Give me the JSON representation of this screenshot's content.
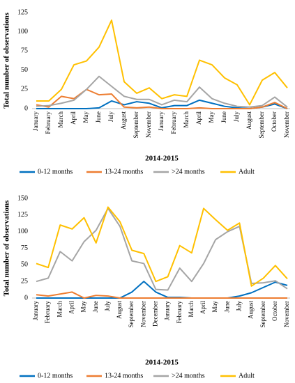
{
  "chart_data": [
    {
      "type": "line",
      "x_label": "2014-2015",
      "y_label": "Total number of observations",
      "categories": [
        "January",
        "February",
        "March",
        "April",
        "May",
        "June",
        "July",
        "August",
        "September",
        "November",
        "January",
        "February",
        "March",
        "April",
        "May",
        "June",
        "July",
        "August",
        "September",
        "October",
        "November"
      ],
      "ylim": [
        0,
        125
      ],
      "yticks": [
        0,
        25,
        50,
        75,
        100,
        125
      ],
      "series": [
        {
          "name": "0-12 months",
          "color": "#0070c0",
          "values": [
            0,
            0,
            0,
            0,
            0,
            1,
            10,
            5,
            9,
            7,
            1,
            4,
            4,
            11,
            7,
            3,
            1,
            0,
            2,
            6,
            0
          ]
        },
        {
          "name": "13-24 months",
          "color": "#ed7d31",
          "values": [
            5,
            2,
            16,
            13,
            25,
            18,
            19,
            2,
            1,
            2,
            0,
            0,
            0,
            1,
            0,
            0,
            0,
            0,
            2,
            8,
            0
          ]
        },
        {
          "name": ">24 months",
          "color": "#a5a5a5",
          "values": [
            3,
            4,
            7,
            11,
            25,
            42,
            29,
            16,
            12,
            12,
            5,
            11,
            9,
            28,
            13,
            7,
            3,
            2,
            4,
            15,
            2
          ]
        },
        {
          "name": "Adult",
          "color": "#ffc000",
          "values": [
            10,
            10,
            25,
            57,
            62,
            80,
            115,
            35,
            20,
            27,
            13,
            18,
            16,
            63,
            57,
            40,
            31,
            5,
            37,
            47,
            27
          ]
        }
      ]
    },
    {
      "type": "line",
      "x_label": "2014-2015",
      "y_label": "Total number of observations",
      "categories": [
        "January",
        "February",
        "March",
        "April",
        "May",
        "June",
        "July",
        "August",
        "September",
        "November",
        "December",
        "January",
        "February",
        "March",
        "April",
        "May",
        "June",
        "July",
        "August",
        "September",
        "October",
        "November"
      ],
      "ylim": [
        0,
        150
      ],
      "yticks": [
        0,
        25,
        50,
        75,
        100,
        125,
        150
      ],
      "series": [
        {
          "name": "0-12 months",
          "color": "#0070c0",
          "values": [
            0,
            0,
            0,
            0,
            0,
            0,
            0,
            0,
            9,
            25,
            9,
            1,
            1,
            0,
            0,
            0,
            0,
            3,
            8,
            16,
            24,
            19
          ]
        },
        {
          "name": "13-24 months",
          "color": "#ed7d31",
          "values": [
            5,
            3,
            6,
            9,
            0,
            4,
            3,
            0,
            0,
            0,
            0,
            0,
            0,
            0,
            0,
            0,
            0,
            0,
            0,
            0,
            0,
            0
          ]
        },
        {
          "name": ">24 months",
          "color": "#a5a5a5",
          "values": [
            25,
            30,
            70,
            56,
            85,
            102,
            135,
            108,
            56,
            52,
            13,
            12,
            45,
            25,
            52,
            88,
            100,
            108,
            22,
            23,
            26,
            14
          ]
        },
        {
          "name": "Adult",
          "color": "#ffc000",
          "values": [
            52,
            46,
            110,
            104,
            121,
            83,
            137,
            115,
            72,
            67,
            25,
            32,
            79,
            68,
            135,
            118,
            102,
            113,
            18,
            30,
            49,
            29
          ]
        }
      ]
    }
  ]
}
